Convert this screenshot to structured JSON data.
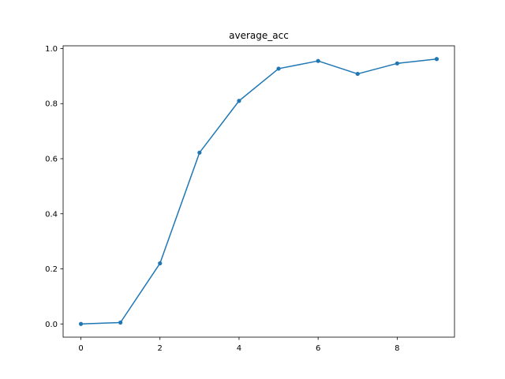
{
  "chart_data": {
    "type": "line",
    "title": "average_acc",
    "xlabel": "",
    "ylabel": "",
    "x": [
      0,
      1,
      2,
      3,
      4,
      5,
      6,
      7,
      8,
      9
    ],
    "series": [
      {
        "name": "average_acc",
        "color": "#1f77b4",
        "values": [
          0.0,
          0.005,
          0.22,
          0.622,
          0.81,
          0.927,
          0.955,
          0.908,
          0.946,
          0.962
        ]
      }
    ],
    "xlim": [
      -0.45,
      9.45
    ],
    "ylim": [
      -0.048,
      1.01
    ],
    "xticks": [
      0,
      2,
      4,
      6,
      8
    ],
    "xtick_labels": [
      "0",
      "2",
      "4",
      "6",
      "8"
    ],
    "yticks": [
      0.0,
      0.2,
      0.4,
      0.6,
      0.8,
      1.0
    ],
    "ytick_labels": [
      "0.0",
      "0.2",
      "0.4",
      "0.6",
      "0.8",
      "1.0"
    ],
    "grid": false,
    "legend": "none"
  }
}
